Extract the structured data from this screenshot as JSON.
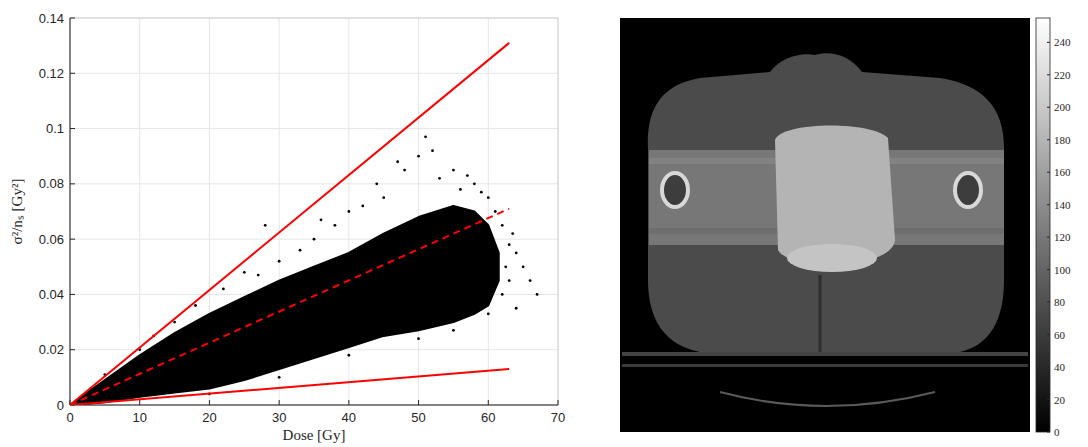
{
  "chart_data": [
    {
      "type": "scatter",
      "xlabel": "Dose [Gy]",
      "ylabel": "σ²/nₛ [Gy²]",
      "xlim": [
        0,
        70
      ],
      "ylim": [
        0,
        0.14
      ],
      "xticks": [
        0,
        10,
        20,
        30,
        40,
        50,
        60,
        70
      ],
      "yticks": [
        0,
        0.02,
        0.04,
        0.06,
        0.08,
        0.1,
        0.12,
        0.14
      ],
      "grid": true,
      "series": [
        {
          "type": "scatter",
          "color": "#000000",
          "marker": "point",
          "x": [
            12,
            15,
            18,
            22,
            25,
            27,
            28,
            30,
            33,
            35,
            36,
            38,
            40,
            42,
            44,
            45,
            47,
            48,
            50,
            51,
            52,
            53,
            55,
            56,
            57,
            58,
            59,
            60,
            62,
            63,
            64,
            65,
            66,
            67,
            62.5,
            63.5,
            61,
            20,
            30,
            40,
            50,
            55,
            60,
            62,
            63,
            5,
            8,
            3,
            10,
            64
          ],
          "values": [
            0.025,
            0.03,
            0.036,
            0.042,
            0.048,
            0.047,
            0.065,
            0.052,
            0.056,
            0.06,
            0.067,
            0.065,
            0.07,
            0.072,
            0.08,
            0.075,
            0.088,
            0.085,
            0.09,
            0.097,
            0.092,
            0.082,
            0.085,
            0.078,
            0.083,
            0.08,
            0.077,
            0.075,
            0.065,
            0.058,
            0.055,
            0.05,
            0.045,
            0.04,
            0.05,
            0.062,
            0.07,
            0.004,
            0.01,
            0.018,
            0.024,
            0.027,
            0.033,
            0.04,
            0.045,
            0.011,
            0.014,
            0.006,
            0.02,
            0.035
          ]
        },
        {
          "type": "area",
          "color": "#000000",
          "x": [
            0,
            5,
            10,
            15,
            20,
            25,
            30,
            35,
            40,
            45,
            50,
            55,
            58,
            60,
            61.5
          ],
          "values": [
            0,
            0.009,
            0.018,
            0.026,
            0.033,
            0.039,
            0.045,
            0.05,
            0.055,
            0.062,
            0.068,
            0.072,
            0.07,
            0.065,
            0.055
          ],
          "base": [
            0,
            0.001,
            0.003,
            0.0045,
            0.006,
            0.009,
            0.013,
            0.017,
            0.021,
            0.025,
            0.027,
            0.03,
            0.033,
            0.036,
            0.045
          ]
        },
        {
          "type": "line",
          "color": "#ff0000",
          "line_style": "solid",
          "x": [
            0,
            63
          ],
          "values": [
            0,
            0.131
          ]
        },
        {
          "type": "line",
          "color": "#ff0000",
          "line_style": "dashed",
          "x": [
            0,
            63
          ],
          "values": [
            0,
            0.071
          ]
        },
        {
          "type": "line",
          "color": "#ff0000",
          "line_style": "solid",
          "x": [
            0,
            63
          ],
          "values": [
            0,
            0.013
          ]
        }
      ]
    },
    {
      "type": "image",
      "clim": [
        0,
        255
      ],
      "cticks": [
        0,
        20,
        40,
        60,
        80,
        100,
        120,
        140,
        160,
        180,
        200,
        220,
        240
      ]
    }
  ]
}
